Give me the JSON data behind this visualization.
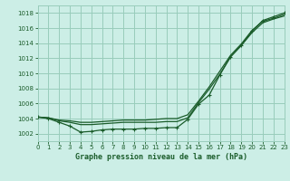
{
  "title": "Graphe pression niveau de la mer (hPa)",
  "bg_color": "#cceee6",
  "grid_color": "#99ccbb",
  "line_color": "#1a5c2a",
  "ylim": [
    1001.0,
    1019.0
  ],
  "xlim": [
    0,
    23
  ],
  "ytick_vals": [
    1002,
    1004,
    1006,
    1008,
    1010,
    1012,
    1014,
    1016,
    1018
  ],
  "xtick_vals": [
    0,
    1,
    2,
    3,
    4,
    5,
    6,
    7,
    8,
    9,
    10,
    11,
    12,
    13,
    14,
    15,
    16,
    17,
    18,
    19,
    20,
    21,
    22,
    23
  ],
  "series_top": [
    1004.2,
    1004.1,
    1003.8,
    1003.7,
    1003.5,
    1003.5,
    1003.6,
    1003.7,
    1003.8,
    1003.8,
    1003.8,
    1003.9,
    1004.0,
    1004.0,
    1004.5,
    1006.3,
    1008.2,
    1010.3,
    1012.4,
    1013.9,
    1015.7,
    1016.9,
    1017.3,
    1017.8
  ],
  "series_mid": [
    1004.2,
    1004.1,
    1003.7,
    1003.5,
    1003.2,
    1003.2,
    1003.3,
    1003.4,
    1003.5,
    1003.5,
    1003.5,
    1003.5,
    1003.6,
    1003.6,
    1004.1,
    1006.1,
    1007.9,
    1009.9,
    1012.2,
    1013.7,
    1015.4,
    1016.7,
    1017.2,
    1017.6
  ],
  "series_markers": [
    1004.2,
    1004.0,
    1003.5,
    1003.0,
    1002.2,
    1002.3,
    1002.5,
    1002.6,
    1002.6,
    1002.6,
    1002.7,
    1002.7,
    1002.8,
    1002.8,
    1003.9,
    1005.9,
    1007.1,
    1009.8,
    1012.2,
    1013.7,
    1015.6,
    1017.0,
    1017.5,
    1018.0
  ]
}
